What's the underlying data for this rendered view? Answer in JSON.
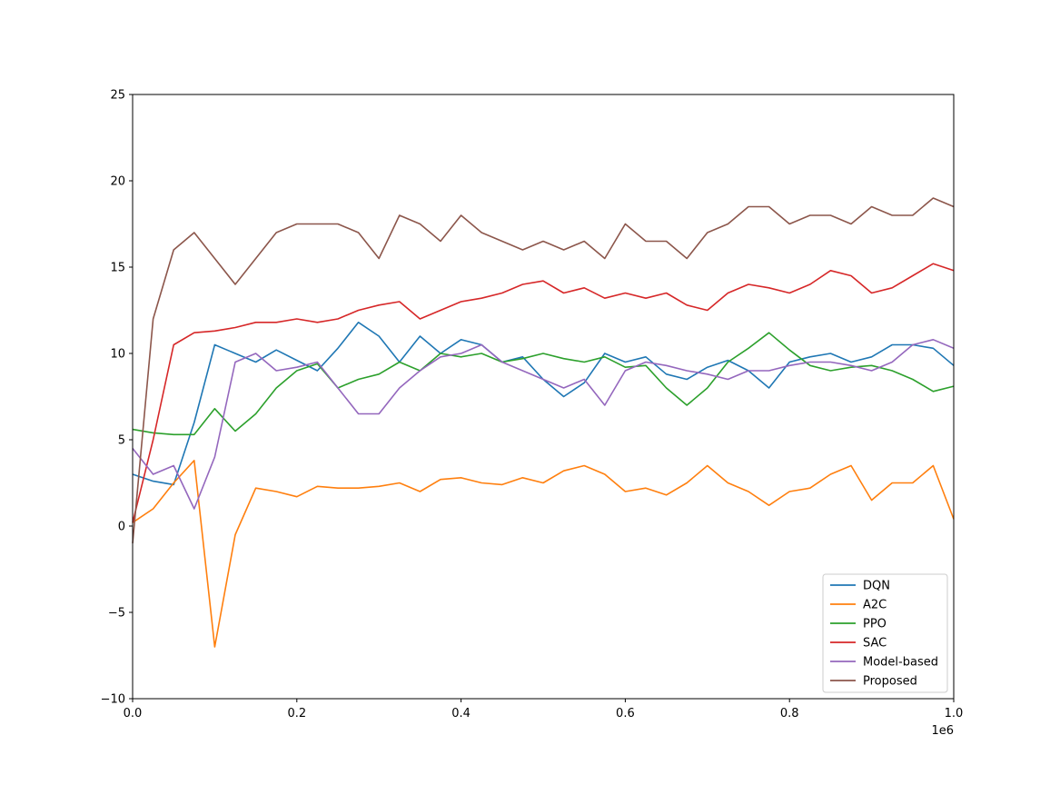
{
  "chart_data": {
    "type": "line",
    "title": "",
    "xlabel": "",
    "ylabel": "",
    "xlim": [
      0,
      1000000
    ],
    "ylim": [
      -10,
      25
    ],
    "x_offset_label": "1e6",
    "grid": false,
    "legend_position": "lower-right",
    "x_ticks": [
      {
        "value": 0,
        "label": "0.0"
      },
      {
        "value": 200000,
        "label": "0.2"
      },
      {
        "value": 400000,
        "label": "0.4"
      },
      {
        "value": 600000,
        "label": "0.6"
      },
      {
        "value": 800000,
        "label": "0.8"
      },
      {
        "value": 1000000,
        "label": "1.0"
      }
    ],
    "y_ticks": [
      {
        "value": -10,
        "label": "−10"
      },
      {
        "value": -5,
        "label": "−5"
      },
      {
        "value": 0,
        "label": "0"
      },
      {
        "value": 5,
        "label": "5"
      },
      {
        "value": 10,
        "label": "10"
      },
      {
        "value": 15,
        "label": "15"
      },
      {
        "value": 20,
        "label": "20"
      },
      {
        "value": 25,
        "label": "25"
      }
    ],
    "x": [
      0,
      25000,
      50000,
      75000,
      100000,
      125000,
      150000,
      175000,
      200000,
      225000,
      250000,
      275000,
      300000,
      325000,
      350000,
      375000,
      400000,
      425000,
      450000,
      475000,
      500000,
      525000,
      550000,
      575000,
      600000,
      625000,
      650000,
      675000,
      700000,
      725000,
      750000,
      775000,
      800000,
      825000,
      850000,
      875000,
      900000,
      925000,
      950000,
      975000,
      1000000
    ],
    "series": [
      {
        "name": "DQN",
        "color": "#1f77b4",
        "values": [
          3.0,
          2.6,
          2.4,
          6.0,
          10.5,
          10.0,
          9.5,
          10.2,
          9.6,
          9.0,
          10.3,
          11.8,
          11.0,
          9.5,
          11.0,
          10.0,
          10.8,
          10.5,
          9.5,
          9.8,
          8.5,
          7.5,
          8.3,
          10.0,
          9.5,
          9.8,
          8.8,
          8.5,
          9.2,
          9.6,
          9.0,
          8.0,
          9.5,
          9.8,
          10.0,
          9.5,
          9.8,
          10.5,
          10.5,
          10.3,
          9.3
        ]
      },
      {
        "name": "A2C",
        "color": "#ff7f0e",
        "values": [
          0.2,
          1.0,
          2.5,
          3.8,
          -7.0,
          -0.5,
          2.2,
          2.0,
          1.7,
          2.3,
          2.2,
          2.2,
          2.3,
          2.5,
          2.0,
          2.7,
          2.8,
          2.5,
          2.4,
          2.8,
          2.5,
          3.2,
          3.5,
          3.0,
          2.0,
          2.2,
          1.8,
          2.5,
          3.5,
          2.5,
          2.0,
          1.2,
          2.0,
          2.2,
          3.0,
          3.5,
          1.5,
          2.5,
          2.5,
          3.5,
          0.4
        ]
      },
      {
        "name": "PPO",
        "color": "#2ca02c",
        "values": [
          5.6,
          5.4,
          5.3,
          5.3,
          6.8,
          5.5,
          6.5,
          8.0,
          9.0,
          9.4,
          8.0,
          8.5,
          8.8,
          9.5,
          9.0,
          10.0,
          9.8,
          10.0,
          9.5,
          9.7,
          10.0,
          9.7,
          9.5,
          9.8,
          9.2,
          9.3,
          8.0,
          7.0,
          8.0,
          9.5,
          10.3,
          11.2,
          10.2,
          9.3,
          9.0,
          9.2,
          9.3,
          9.0,
          8.5,
          7.8,
          8.1
        ]
      },
      {
        "name": "SAC",
        "color": "#d62728",
        "values": [
          0.2,
          5.0,
          10.5,
          11.2,
          11.3,
          11.5,
          11.8,
          11.8,
          12.0,
          11.8,
          12.0,
          12.5,
          12.8,
          13.0,
          12.0,
          12.5,
          13.0,
          13.2,
          13.5,
          14.0,
          14.2,
          13.5,
          13.8,
          13.2,
          13.5,
          13.2,
          13.5,
          12.8,
          12.5,
          13.5,
          14.0,
          13.8,
          13.5,
          14.0,
          14.8,
          14.5,
          13.5,
          13.8,
          14.5,
          15.2,
          14.8
        ]
      },
      {
        "name": "Model-based",
        "color": "#9467bd",
        "values": [
          4.5,
          3.0,
          3.5,
          1.0,
          4.0,
          9.5,
          10.0,
          9.0,
          9.2,
          9.5,
          8.0,
          6.5,
          6.5,
          8.0,
          9.0,
          9.8,
          10.0,
          10.5,
          9.5,
          9.0,
          8.5,
          8.0,
          8.5,
          7.0,
          9.0,
          9.5,
          9.3,
          9.0,
          8.8,
          8.5,
          9.0,
          9.0,
          9.3,
          9.5,
          9.5,
          9.3,
          9.0,
          9.5,
          10.5,
          10.8,
          10.3
        ]
      },
      {
        "name": "Proposed",
        "color": "#8c564b",
        "values": [
          -1.0,
          12.0,
          16.0,
          17.0,
          15.5,
          14.0,
          15.5,
          17.0,
          17.5,
          17.5,
          17.5,
          17.0,
          15.5,
          18.0,
          17.5,
          16.5,
          18.0,
          17.0,
          16.5,
          16.0,
          16.5,
          16.0,
          16.5,
          15.5,
          17.5,
          16.5,
          16.5,
          15.5,
          17.0,
          17.5,
          18.5,
          18.5,
          17.5,
          18.0,
          18.0,
          17.5,
          18.5,
          18.0,
          18.0,
          19.0,
          18.5
        ]
      }
    ]
  }
}
